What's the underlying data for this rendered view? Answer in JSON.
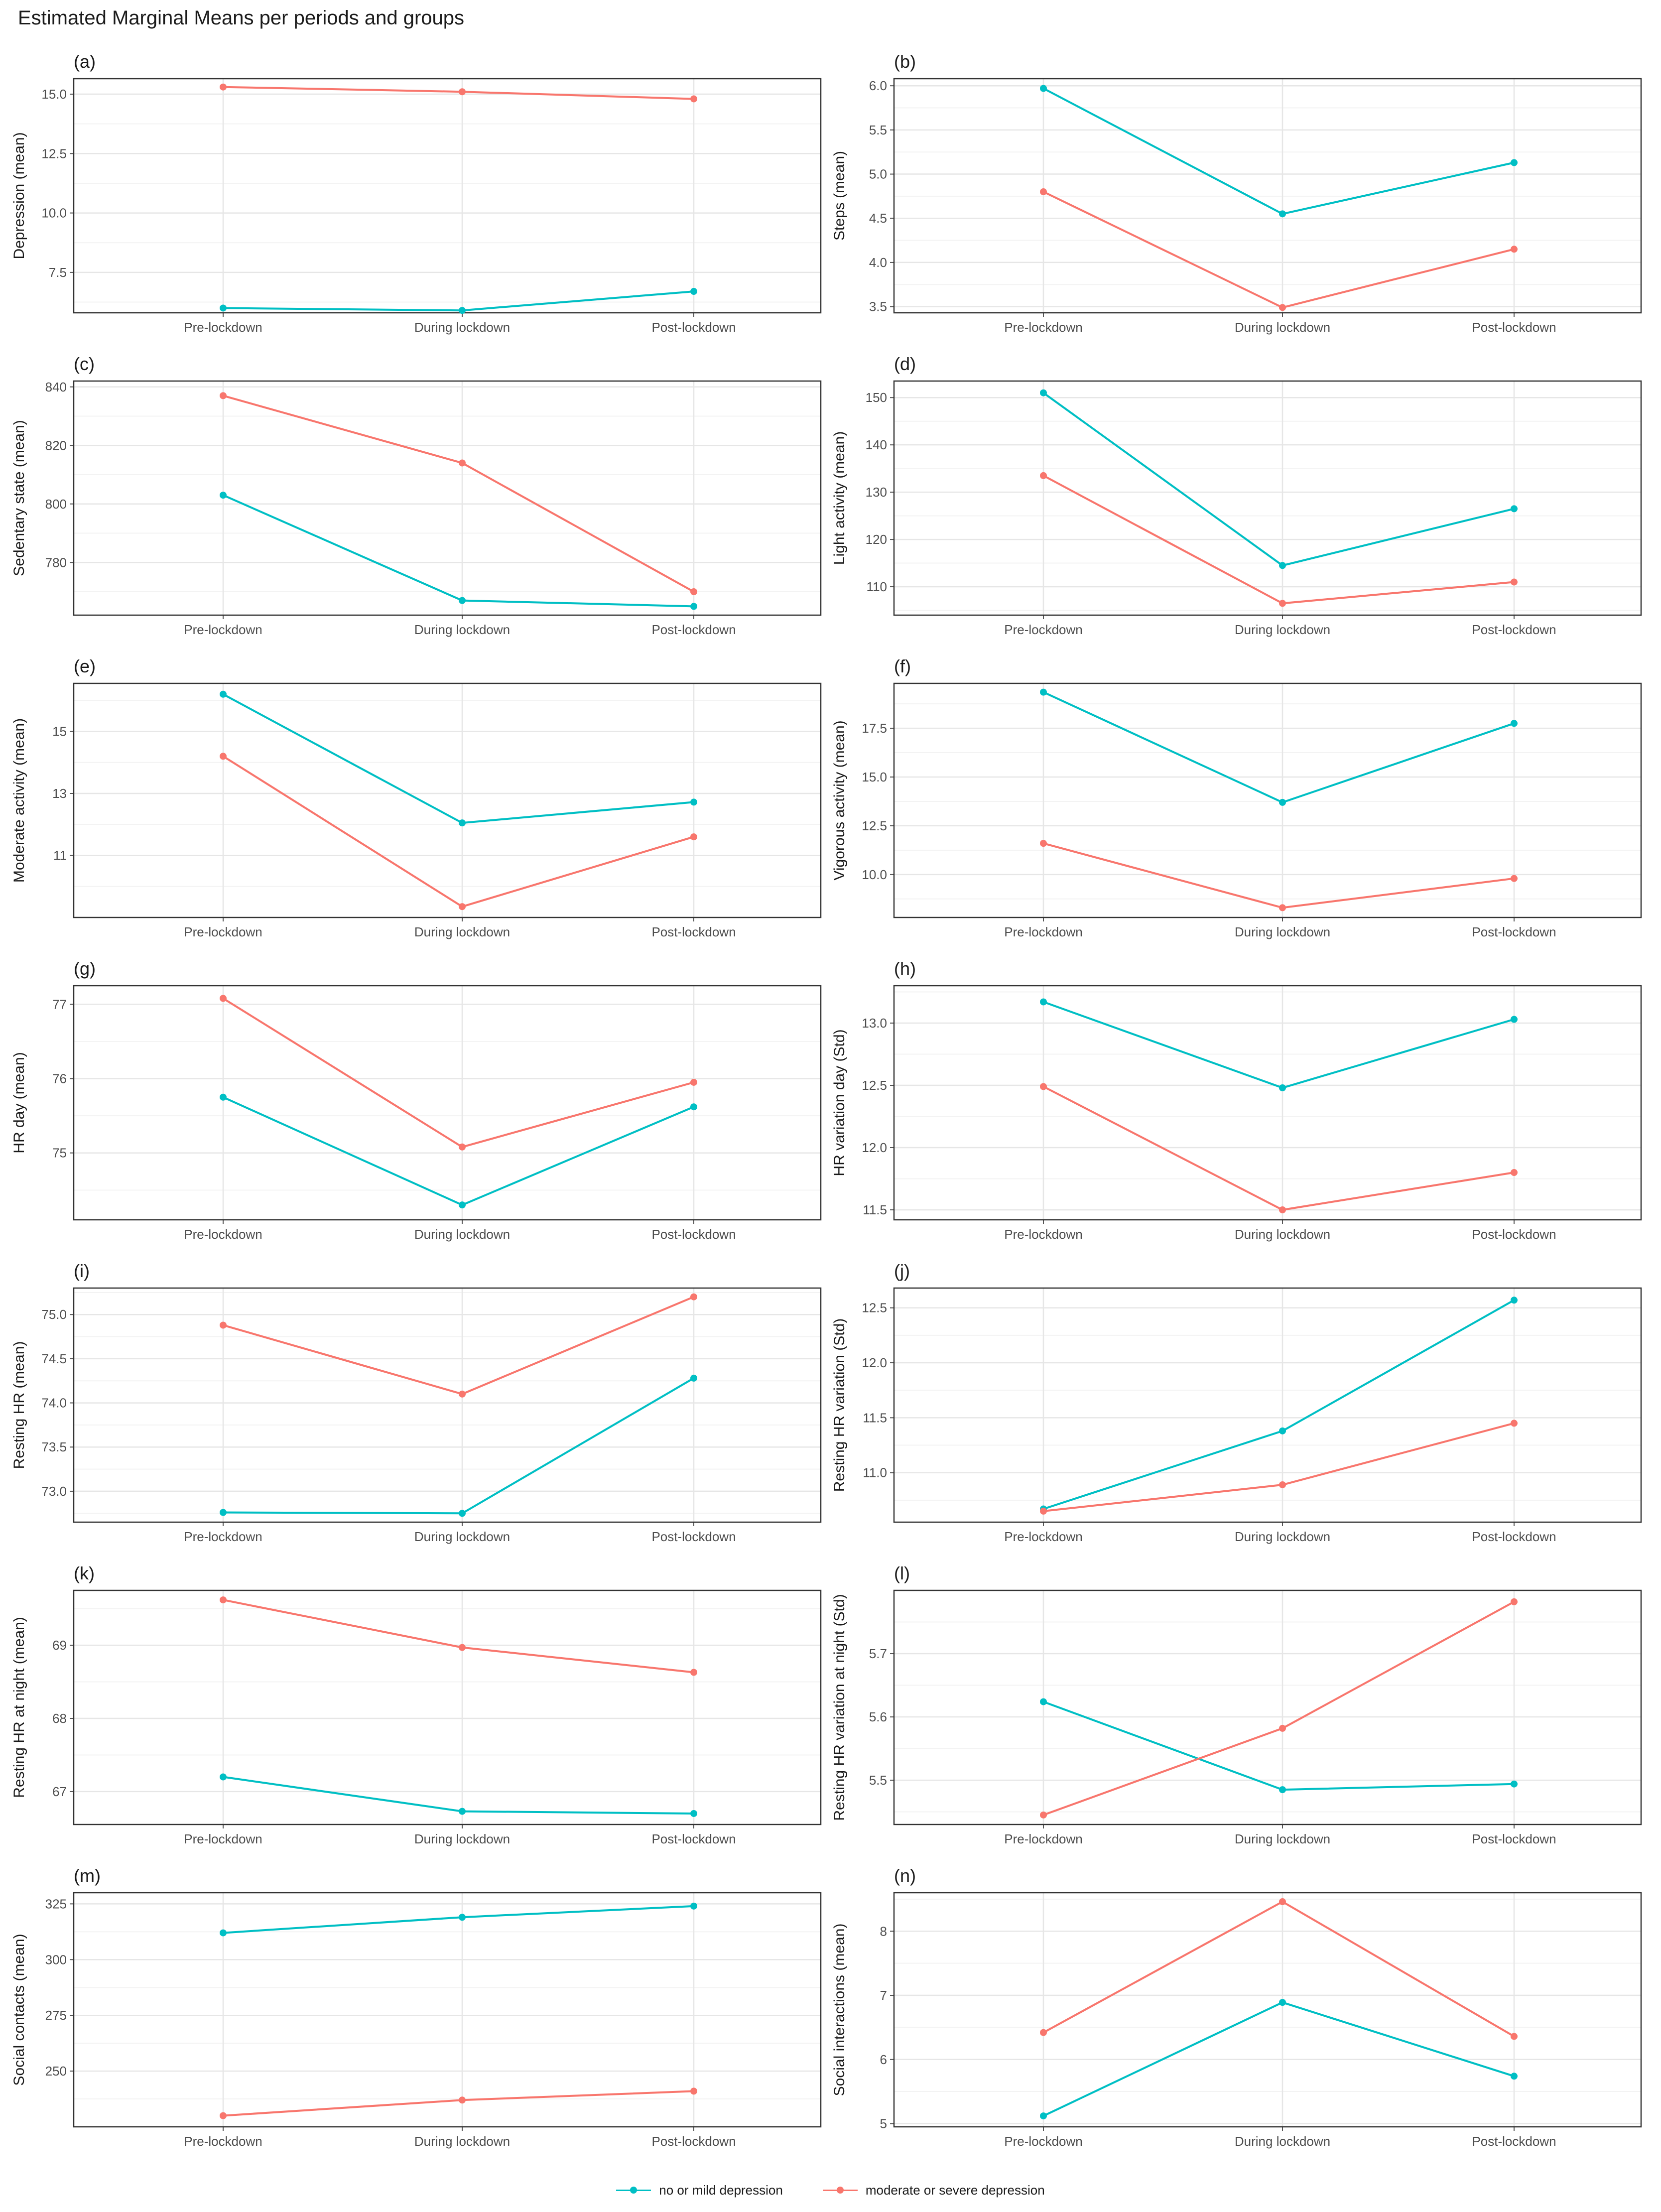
{
  "figure_title": "Estimated Marginal Means per periods and groups",
  "colors": {
    "no_or_mild": "#00BFC4",
    "moderate_or_severe": "#F8766D",
    "grid_major": "#e6e6e6",
    "grid_minor": "#f3f3f3",
    "panel_border": "#333333"
  },
  "legend": {
    "items": [
      {
        "label": "no or mild depression",
        "color": "#00BFC4"
      },
      {
        "label": "moderate or severe depression",
        "color": "#F8766D"
      }
    ]
  },
  "chart_data": [
    {
      "type": "line",
      "panel_label": "(a)",
      "ylabel": "Depression (mean)",
      "categories": [
        "Pre-lockdown",
        "During lockdown",
        "Post-lockdown"
      ],
      "ylim": [
        5.8,
        15.65
      ],
      "yticks": [
        7.5,
        10.0,
        12.5,
        15.0
      ],
      "ytick_labels": [
        "7.5",
        "10.0",
        "12.5",
        "15.0"
      ],
      "series": [
        {
          "name": "no or mild depression",
          "values": [
            6.0,
            5.9,
            6.7
          ]
        },
        {
          "name": "moderate or severe depression",
          "values": [
            15.3,
            15.1,
            14.8
          ]
        }
      ]
    },
    {
      "type": "line",
      "panel_label": "(b)",
      "ylabel": "Steps (mean)",
      "categories": [
        "Pre-lockdown",
        "During lockdown",
        "Post-lockdown"
      ],
      "ylim": [
        3.43,
        6.08
      ],
      "yticks": [
        3.5,
        4.0,
        4.5,
        5.0,
        5.5,
        6.0
      ],
      "ytick_labels": [
        "3.5",
        "4.0",
        "4.5",
        "5.0",
        "5.5",
        "6.0"
      ],
      "series": [
        {
          "name": "no or mild depression",
          "values": [
            5.97,
            4.55,
            5.13
          ]
        },
        {
          "name": "moderate or severe depression",
          "values": [
            4.8,
            3.49,
            4.15
          ]
        }
      ]
    },
    {
      "type": "line",
      "panel_label": "(c)",
      "ylabel": "Sedentary state (mean)",
      "categories": [
        "Pre-lockdown",
        "During lockdown",
        "Post-lockdown"
      ],
      "ylim": [
        762,
        842
      ],
      "yticks": [
        780,
        800,
        820,
        840
      ],
      "ytick_labels": [
        "780",
        "800",
        "820",
        "840"
      ],
      "series": [
        {
          "name": "no or mild depression",
          "values": [
            803,
            767,
            765
          ]
        },
        {
          "name": "moderate or severe depression",
          "values": [
            837,
            814,
            770
          ]
        }
      ]
    },
    {
      "type": "line",
      "panel_label": "(d)",
      "ylabel": "Light activity (mean)",
      "categories": [
        "Pre-lockdown",
        "During lockdown",
        "Post-lockdown"
      ],
      "ylim": [
        104,
        153.5
      ],
      "yticks": [
        110,
        120,
        130,
        140,
        150
      ],
      "ytick_labels": [
        "110",
        "120",
        "130",
        "140",
        "150"
      ],
      "series": [
        {
          "name": "no or mild depression",
          "values": [
            151,
            114.5,
            126.5
          ]
        },
        {
          "name": "moderate or severe depression",
          "values": [
            133.5,
            106.5,
            111
          ]
        }
      ]
    },
    {
      "type": "line",
      "panel_label": "(e)",
      "ylabel": "Moderate activity (mean)",
      "categories": [
        "Pre-lockdown",
        "During lockdown",
        "Post-lockdown"
      ],
      "ylim": [
        9.0,
        16.55
      ],
      "yticks": [
        11,
        13,
        15
      ],
      "ytick_labels": [
        "11",
        "13",
        "15"
      ],
      "series": [
        {
          "name": "no or mild depression",
          "values": [
            16.2,
            12.05,
            12.72
          ]
        },
        {
          "name": "moderate or severe depression",
          "values": [
            14.2,
            9.35,
            11.6
          ]
        }
      ]
    },
    {
      "type": "line",
      "panel_label": "(f)",
      "ylabel": "Vigorous activity (mean)",
      "categories": [
        "Pre-lockdown",
        "During lockdown",
        "Post-lockdown"
      ],
      "ylim": [
        7.8,
        19.8
      ],
      "yticks": [
        10.0,
        12.5,
        15.0,
        17.5
      ],
      "ytick_labels": [
        "10.0",
        "12.5",
        "15.0",
        "17.5"
      ],
      "series": [
        {
          "name": "no or mild depression",
          "values": [
            19.35,
            13.7,
            17.75
          ]
        },
        {
          "name": "moderate or severe depression",
          "values": [
            11.6,
            8.3,
            9.8
          ]
        }
      ]
    },
    {
      "type": "line",
      "panel_label": "(g)",
      "ylabel": "HR  day (mean)",
      "categories": [
        "Pre-lockdown",
        "During lockdown",
        "Post-lockdown"
      ],
      "ylim": [
        74.1,
        77.25
      ],
      "yticks": [
        75,
        76,
        77
      ],
      "ytick_labels": [
        "75",
        "76",
        "77"
      ],
      "series": [
        {
          "name": "no or mild depression",
          "values": [
            75.75,
            74.3,
            75.62
          ]
        },
        {
          "name": "moderate or severe depression",
          "values": [
            77.08,
            75.08,
            75.95
          ]
        }
      ]
    },
    {
      "type": "line",
      "panel_label": "(h)",
      "ylabel": "HR variation day (Std)",
      "categories": [
        "Pre-lockdown",
        "During lockdown",
        "Post-lockdown"
      ],
      "ylim": [
        11.42,
        13.3
      ],
      "yticks": [
        11.5,
        12.0,
        12.5,
        13.0
      ],
      "ytick_labels": [
        "11.5",
        "12.0",
        "12.5",
        "13.0"
      ],
      "series": [
        {
          "name": "no or mild depression",
          "values": [
            13.17,
            12.48,
            13.03
          ]
        },
        {
          "name": "moderate or severe depression",
          "values": [
            12.49,
            11.5,
            11.8
          ]
        }
      ]
    },
    {
      "type": "line",
      "panel_label": "(i)",
      "ylabel": "Resting HR (mean)",
      "categories": [
        "Pre-lockdown",
        "During lockdown",
        "Post-lockdown"
      ],
      "ylim": [
        72.65,
        75.3
      ],
      "yticks": [
        73.0,
        73.5,
        74.0,
        74.5,
        75.0
      ],
      "ytick_labels": [
        "73.0",
        "73.5",
        "74.0",
        "74.5",
        "75.0"
      ],
      "series": [
        {
          "name": "no or mild depression",
          "values": [
            72.76,
            72.75,
            74.28
          ]
        },
        {
          "name": "moderate or severe depression",
          "values": [
            74.88,
            74.1,
            75.2
          ]
        }
      ]
    },
    {
      "type": "line",
      "panel_label": "(j)",
      "ylabel": "Resting HR variation (Std)",
      "categories": [
        "Pre-lockdown",
        "During lockdown",
        "Post-lockdown"
      ],
      "ylim": [
        10.55,
        12.68
      ],
      "yticks": [
        11.0,
        11.5,
        12.0,
        12.5
      ],
      "ytick_labels": [
        "11.0",
        "11.5",
        "12.0",
        "12.5"
      ],
      "series": [
        {
          "name": "no or mild depression",
          "values": [
            10.67,
            11.38,
            12.57
          ]
        },
        {
          "name": "moderate or severe depression",
          "values": [
            10.65,
            10.89,
            11.45
          ]
        }
      ]
    },
    {
      "type": "line",
      "panel_label": "(k)",
      "ylabel": "Resting HR at  night (mean)",
      "categories": [
        "Pre-lockdown",
        "During lockdown",
        "Post-lockdown"
      ],
      "ylim": [
        66.55,
        69.75
      ],
      "yticks": [
        67,
        68,
        69
      ],
      "ytick_labels": [
        "67",
        "68",
        "69"
      ],
      "series": [
        {
          "name": "no or mild depression",
          "values": [
            67.2,
            66.73,
            66.7
          ]
        },
        {
          "name": "moderate or severe depression",
          "values": [
            69.62,
            68.97,
            68.63
          ]
        }
      ]
    },
    {
      "type": "line",
      "panel_label": "(l)",
      "ylabel": "Resting HR variation at night (Std)",
      "categories": [
        "Pre-lockdown",
        "During lockdown",
        "Post-lockdown"
      ],
      "ylim": [
        5.43,
        5.8
      ],
      "yticks": [
        5.5,
        5.6,
        5.7
      ],
      "ytick_labels": [
        "5.5",
        "5.6",
        "5.7"
      ],
      "series": [
        {
          "name": "no or mild depression",
          "values": [
            5.624,
            5.485,
            5.494
          ]
        },
        {
          "name": "moderate or severe depression",
          "values": [
            5.445,
            5.582,
            5.782
          ]
        }
      ]
    },
    {
      "type": "line",
      "panel_label": "(m)",
      "ylabel": "Social contacts (mean)",
      "categories": [
        "Pre-lockdown",
        "During lockdown",
        "Post-lockdown"
      ],
      "ylim": [
        225,
        330
      ],
      "yticks": [
        250,
        275,
        300,
        325
      ],
      "ytick_labels": [
        "250",
        "275",
        "300",
        "325"
      ],
      "series": [
        {
          "name": "no or mild depression",
          "values": [
            312,
            319,
            324
          ]
        },
        {
          "name": "moderate or severe depression",
          "values": [
            230,
            237,
            241
          ]
        }
      ]
    },
    {
      "type": "line",
      "panel_label": "(n)",
      "ylabel": "Social interactions (mean)",
      "categories": [
        "Pre-lockdown",
        "During lockdown",
        "Post-lockdown"
      ],
      "ylim": [
        4.95,
        8.6
      ],
      "yticks": [
        5,
        6,
        7,
        8
      ],
      "ytick_labels": [
        "5",
        "6",
        "7",
        "8"
      ],
      "series": [
        {
          "name": "no or mild depression",
          "values": [
            5.12,
            6.89,
            5.74
          ]
        },
        {
          "name": "moderate or severe depression",
          "values": [
            6.42,
            8.46,
            6.36
          ]
        }
      ]
    }
  ]
}
